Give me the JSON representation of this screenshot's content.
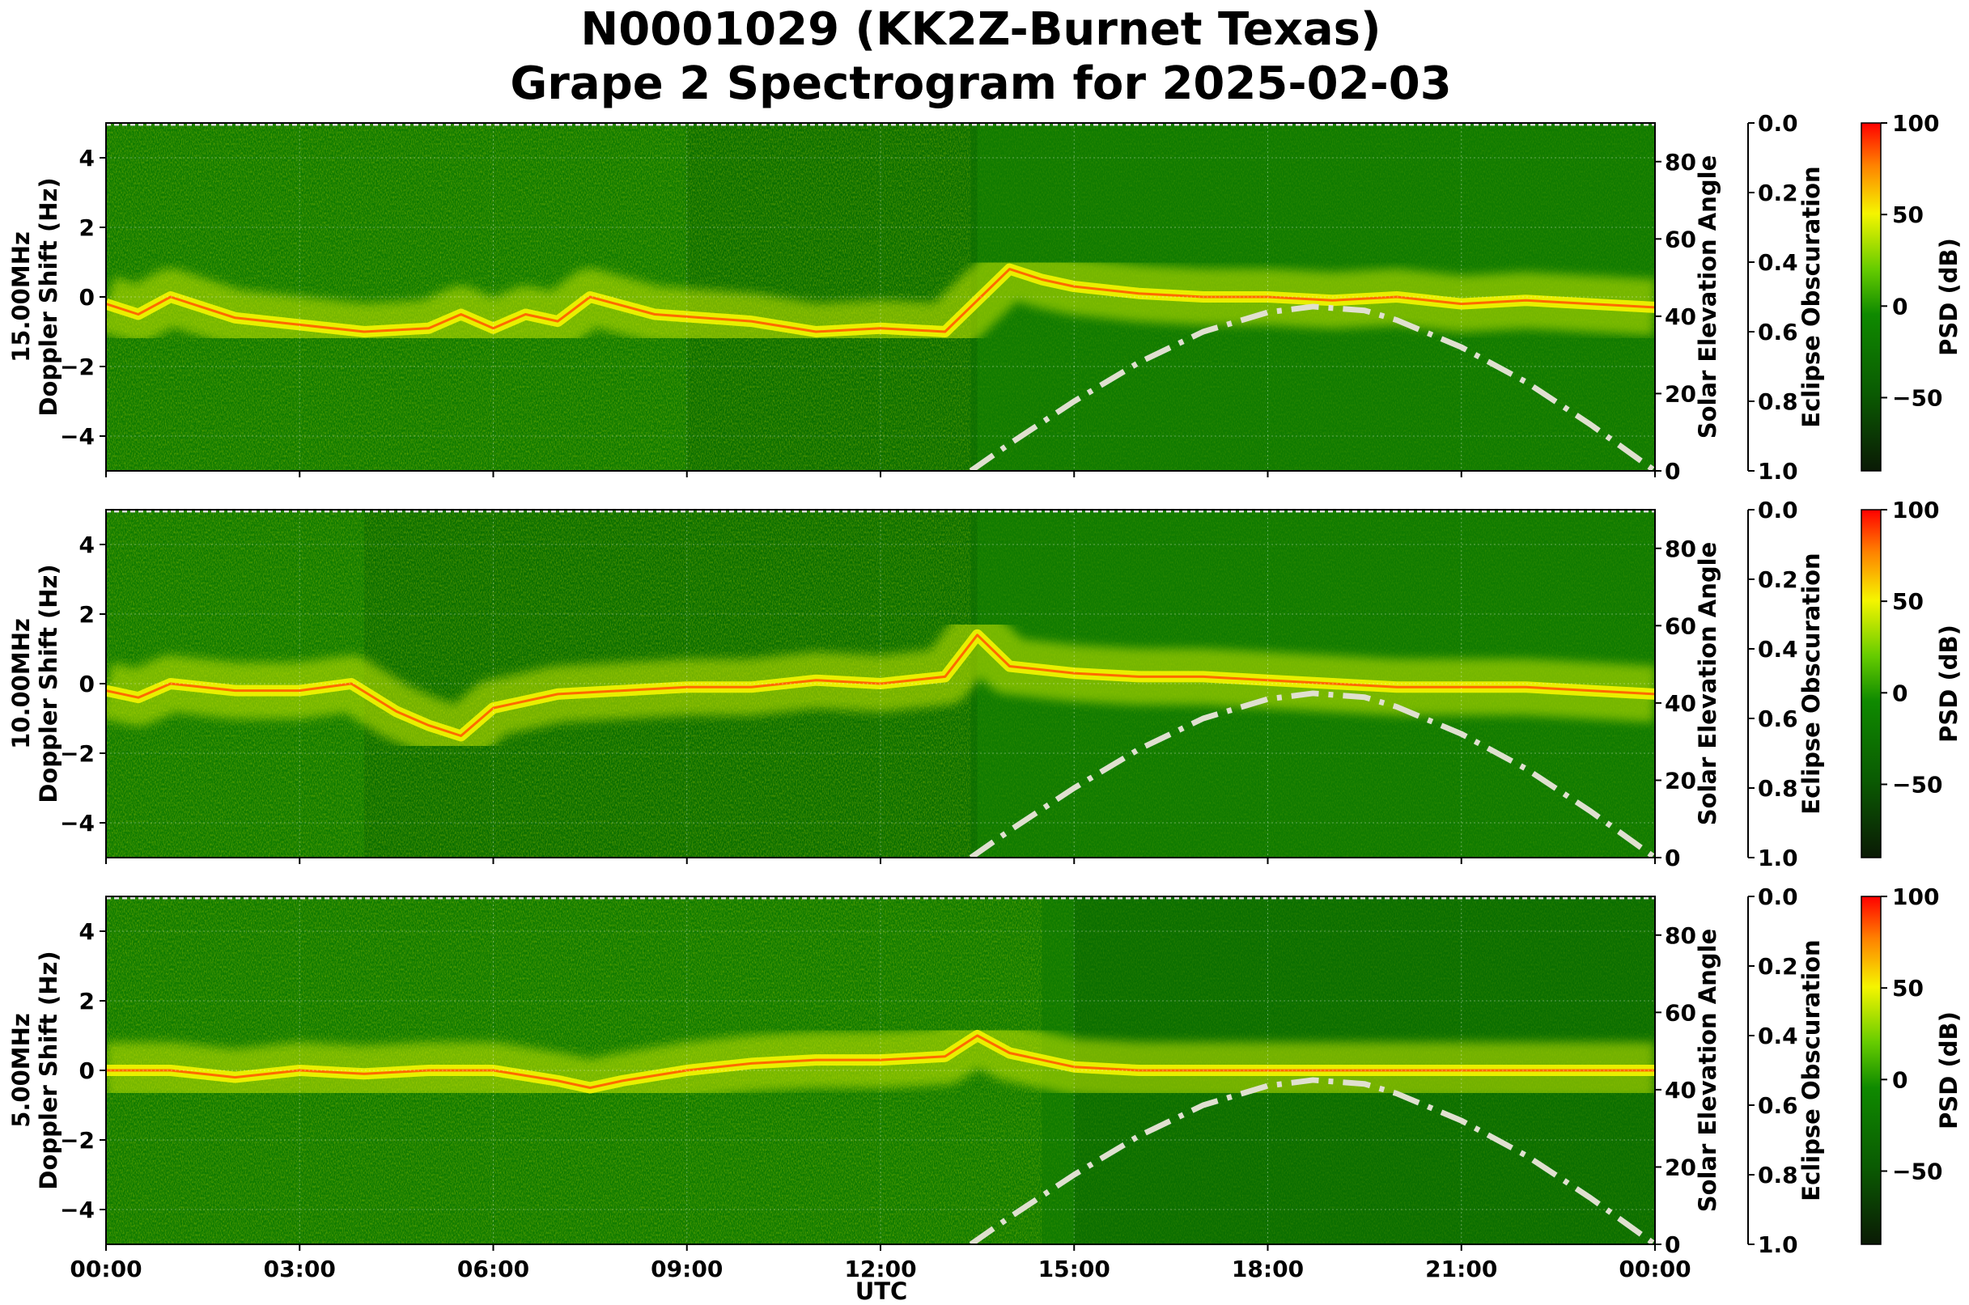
{
  "chart_data": {
    "type": "heatmap",
    "title": [
      "N0001029 (KK2Z-Burnet Texas)",
      "Grape 2 Spectrogram for 2025-02-03"
    ],
    "xlabel": "UTC",
    "x_ticks": [
      "00:00",
      "03:00",
      "06:00",
      "09:00",
      "12:00",
      "15:00",
      "18:00",
      "21:00",
      "00:00"
    ],
    "x_range_hours": [
      0,
      24
    ],
    "ylabel": "Doppler Shift (Hz)",
    "y_range": [
      -5,
      5
    ],
    "y_ticks": [
      4,
      2,
      0,
      -2,
      -4
    ],
    "y2label": "Solar Elevation Angle",
    "y2_range": [
      0,
      90
    ],
    "y2_ticks": [
      80,
      60,
      40,
      20,
      0
    ],
    "y3label": "Eclipse Obscuration",
    "y3_range": [
      0.0,
      1.0
    ],
    "y3_ticks": [
      "0.0",
      "0.2",
      "0.4",
      "0.6",
      "0.8",
      "1.0"
    ],
    "colorbar_label": "PSD (dB)",
    "colorbar_range": [
      -90,
      100
    ],
    "colorbar_ticks": [
      "100",
      "50",
      "0",
      "−50"
    ],
    "colors": {
      "low": "#0a1a05",
      "mid": "#0f7a00",
      "high_yellow": "#f5f500",
      "max": "#ff0000",
      "elevation_line": "#e0e0d0"
    },
    "grid": true,
    "panels": [
      {
        "name": "15.00MHz",
        "carrier_trace_hz": [
          [
            0,
            -0.2
          ],
          [
            0.5,
            -0.5
          ],
          [
            1,
            0
          ],
          [
            1.5,
            -0.3
          ],
          [
            2,
            -0.6
          ],
          [
            3,
            -0.8
          ],
          [
            4,
            -1
          ],
          [
            5,
            -0.9
          ],
          [
            5.5,
            -0.5
          ],
          [
            6,
            -0.9
          ],
          [
            6.5,
            -0.5
          ],
          [
            7,
            -0.7
          ],
          [
            7.5,
            0
          ],
          [
            8.5,
            -0.5
          ],
          [
            10,
            -0.7
          ],
          [
            11,
            -1
          ],
          [
            12,
            -0.9
          ],
          [
            13,
            -1
          ],
          [
            14,
            0.8
          ],
          [
            14.5,
            0.5
          ],
          [
            15,
            0.3
          ],
          [
            16,
            0.1
          ],
          [
            17,
            0
          ],
          [
            18,
            0
          ],
          [
            19,
            -0.1
          ],
          [
            20,
            0
          ],
          [
            21,
            -0.2
          ],
          [
            22,
            -0.1
          ],
          [
            23,
            -0.2
          ],
          [
            24,
            -0.3
          ]
        ],
        "bright_until_hour": 13.4,
        "dark_from_hour": 9,
        "dark_to_hour": 13.5
      },
      {
        "name": "10.00MHz",
        "carrier_trace_hz": [
          [
            0,
            -0.2
          ],
          [
            0.5,
            -0.4
          ],
          [
            1,
            0
          ],
          [
            2,
            -0.2
          ],
          [
            3,
            -0.2
          ],
          [
            3.8,
            0
          ],
          [
            4.5,
            -0.8
          ],
          [
            5,
            -1.2
          ],
          [
            5.5,
            -1.5
          ],
          [
            6,
            -0.7
          ],
          [
            7,
            -0.3
          ],
          [
            8,
            -0.2
          ],
          [
            9,
            -0.1
          ],
          [
            10,
            -0.1
          ],
          [
            11,
            0.1
          ],
          [
            12,
            0
          ],
          [
            13,
            0.2
          ],
          [
            13.5,
            1.4
          ],
          [
            14,
            0.5
          ],
          [
            15,
            0.3
          ],
          [
            16,
            0.2
          ],
          [
            17,
            0.2
          ],
          [
            18,
            0.1
          ],
          [
            19,
            0
          ],
          [
            20,
            -0.1
          ],
          [
            21,
            -0.1
          ],
          [
            22,
            -0.1
          ],
          [
            23,
            -0.2
          ],
          [
            24,
            -0.3
          ]
        ],
        "bright_until_hour": 13.4,
        "dark_from_hour": 4,
        "dark_to_hour": 13.5
      },
      {
        "name": "5.00MHz",
        "carrier_trace_hz": [
          [
            0,
            0
          ],
          [
            1,
            0
          ],
          [
            2,
            -0.2
          ],
          [
            3,
            0
          ],
          [
            4,
            -0.1
          ],
          [
            5,
            0
          ],
          [
            6,
            0
          ],
          [
            7,
            -0.3
          ],
          [
            7.5,
            -0.5
          ],
          [
            8,
            -0.3
          ],
          [
            9,
            0
          ],
          [
            10,
            0.2
          ],
          [
            11,
            0.3
          ],
          [
            12,
            0.3
          ],
          [
            13,
            0.4
          ],
          [
            13.5,
            1
          ],
          [
            14,
            0.5
          ],
          [
            15,
            0.1
          ],
          [
            16,
            0
          ],
          [
            18,
            0
          ],
          [
            20,
            0
          ],
          [
            22,
            0
          ],
          [
            24,
            0
          ]
        ],
        "bright_until_hour": 14.5,
        "dark_from_hour": 15,
        "dark_to_hour": 24
      }
    ],
    "solar_elevation_deg": [
      [
        13.4,
        0
      ],
      [
        14,
        7
      ],
      [
        15,
        18
      ],
      [
        16,
        28
      ],
      [
        17,
        36
      ],
      [
        18,
        41
      ],
      [
        18.7,
        42.5
      ],
      [
        19.5,
        41.5
      ],
      [
        20,
        39
      ],
      [
        21,
        32
      ],
      [
        22,
        23
      ],
      [
        23,
        12
      ],
      [
        24,
        0
      ]
    ]
  }
}
